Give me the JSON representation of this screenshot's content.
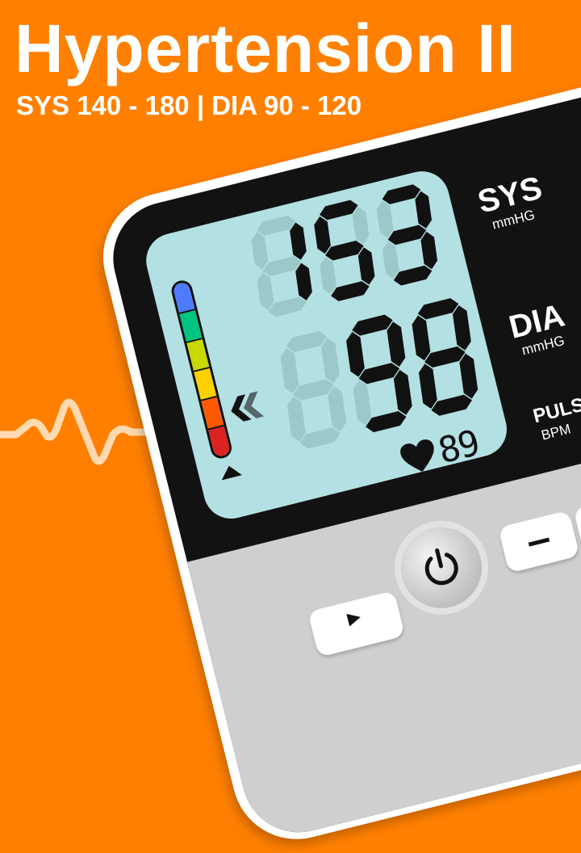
{
  "header": {
    "title": "Hypertension II",
    "subtitle": "SYS 140 - 180 | DIA 90 - 120"
  },
  "monitor": {
    "sys_value": "153",
    "dia_value": " 98",
    "pulse_value": "89",
    "labels": {
      "sys": "SYS",
      "sys_unit": "mmHG",
      "dia": "DIA",
      "dia_unit": "mmHG",
      "pulse": "PULSE",
      "pulse_unit": "BPM"
    },
    "level_bar_colors": [
      "#4f7cff",
      "#00c47f",
      "#c8d800",
      "#ffd000",
      "#ff5a00",
      "#dd2222"
    ],
    "icons": [
      "heart-icon",
      "double-chevron-left-icon",
      "triangle-pointer-icon",
      "power-icon",
      "minus-icon",
      "play-icon"
    ]
  },
  "colors": {
    "background": "#ff8000",
    "lcd": "#b3e0e3",
    "segment_on": "#111111",
    "segment_off": "#9dc8ca",
    "body": "#121212"
  }
}
